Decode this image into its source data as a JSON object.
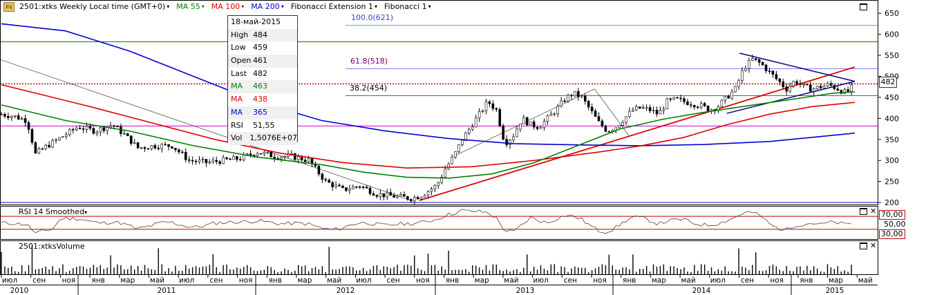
{
  "toolbar": {
    "symbol_label": "2501:xtks Weekly Local time (GMT+0)",
    "ma55_label": "MA 55",
    "ma100_label": "MA 100",
    "ma200_label": "MA 200",
    "fibext_label": "Fibonacci Extension 1",
    "fib_label": "Fibonacci 1",
    "icon": "eq-icon"
  },
  "infobox": {
    "date": "18-май-2015",
    "high_label": "High",
    "high": "484",
    "low_label": "Low",
    "low": "459",
    "open_label": "Open",
    "open": "461",
    "last_label": "Last",
    "last": "482",
    "ma1_label": "MA",
    "ma1": "463",
    "ma2_label": "MA",
    "ma2": "438",
    "ma3_label": "MA",
    "ma3": "365",
    "rsi_label": "RSI",
    "rsi": "51,55",
    "vol_label": "Vol",
    "vol": "1,5076E+07"
  },
  "rsi_panel_label": "RSI 14 Smoothed",
  "vol_panel_label": "2501:xtksVolume",
  "last_price_tag": "482",
  "rsi_tags": {
    "upper": "70,00",
    "mid": "50,00",
    "lower": "30,00"
  },
  "fib_labels": {
    "f100": "100.0(621)",
    "f618": "61.8(518)",
    "f382": "38.2(454)"
  },
  "colors": {
    "ma55": "#008000",
    "ma100": "#e00000",
    "ma200": "#0000d0",
    "candle": "#000000",
    "hline_green": "#008000",
    "hline_magenta": "#d000d0",
    "fib": "#8080ff",
    "rsi_band": "#c00000"
  },
  "chart_data": {
    "type": "candlestick",
    "title": "2501:xtks Weekly Local time (GMT+0)",
    "y_ticks": [
      650,
      600,
      550,
      500,
      450,
      400,
      350,
      300,
      250,
      200
    ],
    "ylim": [
      192,
      665
    ],
    "x_month_labels": [
      "июл",
      "сен",
      "ноя",
      "янв",
      "мар",
      "май",
      "июл",
      "сен",
      "ноя",
      "янв",
      "мар",
      "май",
      "июл",
      "сен",
      "ноя",
      "янв",
      "мар",
      "май",
      "июл",
      "сен",
      "ноя",
      "янв",
      "мар",
      "май",
      "июл",
      "сен",
      "ноя",
      "янв",
      "мар",
      "май"
    ],
    "x_year_labels": [
      "2010",
      "2011",
      "2012",
      "2013",
      "2014",
      "2015"
    ],
    "horizontal_levels": {
      "green": 582,
      "red_dotted": 482,
      "magenta": 382,
      "blue_bottom": 200,
      "fib_100": 621,
      "fib_618": 518,
      "fib_382": 454
    },
    "close_path": [
      [
        0,
        410
      ],
      [
        3,
        405
      ],
      [
        6,
        395
      ],
      [
        8,
        315
      ],
      [
        10,
        330
      ],
      [
        14,
        355
      ],
      [
        18,
        380
      ],
      [
        22,
        370
      ],
      [
        26,
        385
      ],
      [
        29,
        360
      ],
      [
        32,
        330
      ],
      [
        36,
        335
      ],
      [
        40,
        335
      ],
      [
        44,
        300
      ],
      [
        48,
        295
      ],
      [
        52,
        300
      ],
      [
        56,
        305
      ],
      [
        60,
        320
      ],
      [
        64,
        310
      ],
      [
        68,
        310
      ],
      [
        72,
        300
      ],
      [
        76,
        250
      ],
      [
        80,
        230
      ],
      [
        84,
        240
      ],
      [
        88,
        220
      ],
      [
        92,
        215
      ],
      [
        96,
        210
      ],
      [
        98,
        215
      ],
      [
        102,
        240
      ],
      [
        104,
        280
      ],
      [
        106,
        310
      ],
      [
        108,
        350
      ],
      [
        110,
        380
      ],
      [
        112,
        410
      ],
      [
        114,
        440
      ],
      [
        116,
        420
      ],
      [
        118,
        340
      ],
      [
        120,
        360
      ],
      [
        122,
        400
      ],
      [
        124,
        385
      ],
      [
        126,
        380
      ],
      [
        128,
        400
      ],
      [
        130,
        420
      ],
      [
        132,
        445
      ],
      [
        134,
        460
      ],
      [
        136,
        450
      ],
      [
        138,
        420
      ],
      [
        140,
        390
      ],
      [
        142,
        370
      ],
      [
        144,
        380
      ],
      [
        146,
        400
      ],
      [
        148,
        420
      ],
      [
        150,
        425
      ],
      [
        152,
        420
      ],
      [
        154,
        410
      ],
      [
        156,
        440
      ],
      [
        158,
        445
      ],
      [
        160,
        440
      ],
      [
        162,
        435
      ],
      [
        164,
        430
      ],
      [
        166,
        420
      ],
      [
        168,
        430
      ],
      [
        170,
        450
      ],
      [
        172,
        470
      ],
      [
        174,
        520
      ],
      [
        176,
        540
      ],
      [
        178,
        530
      ],
      [
        180,
        510
      ],
      [
        182,
        490
      ],
      [
        184,
        470
      ],
      [
        186,
        490
      ],
      [
        188,
        475
      ],
      [
        190,
        470
      ],
      [
        192,
        475
      ],
      [
        194,
        480
      ],
      [
        196,
        470
      ],
      [
        198,
        460
      ],
      [
        200,
        482
      ]
    ],
    "ma55": [
      [
        0,
        432
      ],
      [
        15,
        395
      ],
      [
        30,
        370
      ],
      [
        45,
        335
      ],
      [
        60,
        308
      ],
      [
        75,
        290
      ],
      [
        85,
        272
      ],
      [
        95,
        260
      ],
      [
        105,
        258
      ],
      [
        115,
        268
      ],
      [
        125,
        295
      ],
      [
        135,
        335
      ],
      [
        145,
        375
      ],
      [
        155,
        398
      ],
      [
        165,
        415
      ],
      [
        175,
        430
      ],
      [
        185,
        445
      ],
      [
        195,
        460
      ],
      [
        200,
        463
      ]
    ],
    "ma100": [
      [
        0,
        480
      ],
      [
        10,
        455
      ],
      [
        20,
        430
      ],
      [
        35,
        390
      ],
      [
        50,
        350
      ],
      [
        65,
        318
      ],
      [
        80,
        295
      ],
      [
        95,
        282
      ],
      [
        110,
        285
      ],
      [
        125,
        300
      ],
      [
        140,
        320
      ],
      [
        150,
        335
      ],
      [
        160,
        355
      ],
      [
        170,
        385
      ],
      [
        180,
        410
      ],
      [
        190,
        428
      ],
      [
        200,
        438
      ]
    ],
    "ma200": [
      [
        0,
        625
      ],
      [
        15,
        608
      ],
      [
        30,
        560
      ],
      [
        45,
        500
      ],
      [
        60,
        440
      ],
      [
        75,
        395
      ],
      [
        90,
        370
      ],
      [
        105,
        352
      ],
      [
        120,
        340
      ],
      [
        135,
        337
      ],
      [
        150,
        335
      ],
      [
        165,
        338
      ],
      [
        180,
        345
      ],
      [
        190,
        355
      ],
      [
        200,
        365
      ]
    ],
    "rsi": {
      "upper": 70,
      "mid": 50,
      "lower": 30
    },
    "volume_note": "weekly volume bars"
  }
}
